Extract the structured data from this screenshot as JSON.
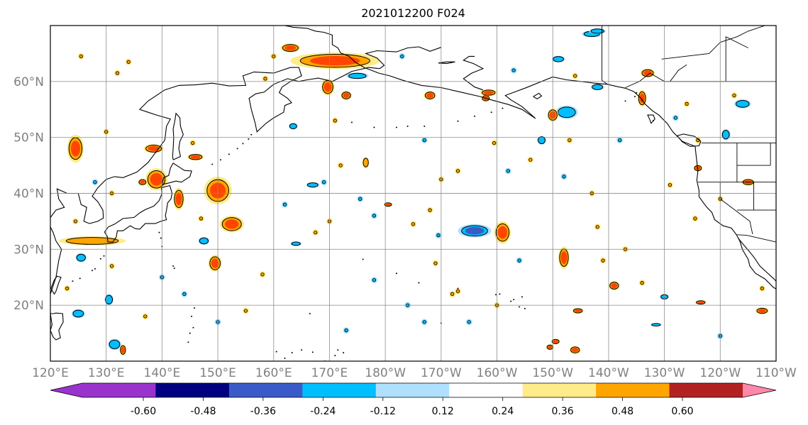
{
  "title": "2021012200 F024",
  "lon_ticks": [
    {
      "lon": 120,
      "label": "120°E"
    },
    {
      "lon": 130,
      "label": "130°E"
    },
    {
      "lon": 140,
      "label": "140°E"
    },
    {
      "lon": 150,
      "label": "150°E"
    },
    {
      "lon": 160,
      "label": "160°E"
    },
    {
      "lon": 170,
      "label": "170°E"
    },
    {
      "lon": 180,
      "label": "180°W"
    },
    {
      "lon": 190,
      "label": "170°W"
    },
    {
      "lon": 200,
      "label": "160°W"
    },
    {
      "lon": 210,
      "label": "150°W"
    },
    {
      "lon": 220,
      "label": "140°W"
    },
    {
      "lon": 230,
      "label": "130°W"
    },
    {
      "lon": 240,
      "label": "120°W"
    },
    {
      "lon": 250,
      "label": "110°W"
    }
  ],
  "lat_ticks": [
    {
      "lat": 20,
      "label": "20°N"
    },
    {
      "lat": 30,
      "label": "30°N"
    },
    {
      "lat": 40,
      "label": "40°N"
    },
    {
      "lat": 50,
      "label": "50°N"
    },
    {
      "lat": 60,
      "label": "60°N"
    }
  ],
  "extent": {
    "lon_min": 120,
    "lon_max": 250,
    "lat_min": 10,
    "lat_max": 70
  },
  "colorbar": {
    "colors": [
      "#9933cc",
      "#000080",
      "#3a5bc7",
      "#00bfff",
      "#b0e0ff",
      "#ffffff",
      "#ffeb8a",
      "#ffa500",
      "#ff4500",
      "#b22222",
      "#ff88aa"
    ],
    "ticks": [
      "-0.60",
      "-0.48",
      "-0.36",
      "-0.24",
      "-0.12",
      "0.12",
      "0.24",
      "0.36",
      "0.48",
      "0.60"
    ]
  },
  "anomalies": [
    {
      "lon": 171,
      "lat": 63.7,
      "rx": 8,
      "ry": 1.5,
      "level": 3
    },
    {
      "lon": 150,
      "lat": 40.5,
      "rx": 2.5,
      "ry": 2.5,
      "level": 3
    },
    {
      "lon": 152.5,
      "lat": 34.5,
      "rx": 2.2,
      "ry": 1.5,
      "level": 3
    },
    {
      "lon": 139,
      "lat": 42.5,
      "rx": 2,
      "ry": 2,
      "level": 3
    },
    {
      "lon": 124.5,
      "lat": 48,
      "rx": 1.5,
      "ry": 2.5,
      "level": 3
    },
    {
      "lon": 127.5,
      "lat": 31.5,
      "rx": 6,
      "ry": 0.8,
      "level": 2
    },
    {
      "lon": 196,
      "lat": 33.3,
      "rx": 3,
      "ry": 1.2,
      "level": -3
    },
    {
      "lon": 201,
      "lat": 33,
      "rx": 1.5,
      "ry": 2,
      "level": 3
    },
    {
      "lon": 212,
      "lat": 28.5,
      "rx": 1,
      "ry": 2,
      "level": 3
    },
    {
      "lon": 169.7,
      "lat": 59,
      "rx": 1.2,
      "ry": 1.5,
      "level": 3
    },
    {
      "lon": 149.5,
      "lat": 27.5,
      "rx": 1.2,
      "ry": 1.5,
      "level": 3
    },
    {
      "lon": 212.5,
      "lat": 54.5,
      "rx": 2,
      "ry": 1.2,
      "level": -2
    },
    {
      "lon": 244,
      "lat": 56,
      "rx": 1.5,
      "ry": 0.8,
      "level": -2
    },
    {
      "lon": 163,
      "lat": 66,
      "rx": 1.8,
      "ry": 0.8,
      "level": 3
    },
    {
      "lon": 173,
      "lat": 57.5,
      "rx": 1,
      "ry": 0.8,
      "level": 3
    },
    {
      "lon": 198.5,
      "lat": 58,
      "rx": 1.5,
      "ry": 0.6,
      "level": 3
    },
    {
      "lon": 188,
      "lat": 57.5,
      "rx": 1.1,
      "ry": 0.8,
      "level": 3
    },
    {
      "lon": 210,
      "lat": 54,
      "rx": 1,
      "ry": 1.2,
      "level": 3
    },
    {
      "lon": 227,
      "lat": 61.5,
      "rx": 1.3,
      "ry": 0.8,
      "level": 3
    },
    {
      "lon": 226,
      "lat": 57,
      "rx": 0.8,
      "ry": 1.5,
      "level": 3
    },
    {
      "lon": 217,
      "lat": 68.5,
      "rx": 1.8,
      "ry": 0.6,
      "level": -2
    },
    {
      "lon": 175,
      "lat": 61,
      "rx": 2,
      "ry": 0.6,
      "level": -2
    },
    {
      "lon": 146,
      "lat": 46.5,
      "rx": 1.5,
      "ry": 0.6,
      "level": 3
    },
    {
      "lon": 143,
      "lat": 39,
      "rx": 1,
      "ry": 2,
      "level": 3
    },
    {
      "lon": 138.5,
      "lat": 48,
      "rx": 1.8,
      "ry": 0.8,
      "level": 3
    },
    {
      "lon": 131.5,
      "lat": 13,
      "rx": 1.2,
      "ry": 1,
      "level": -2
    },
    {
      "lon": 130.5,
      "lat": 21,
      "rx": 0.8,
      "ry": 1,
      "level": -2
    },
    {
      "lon": 125,
      "lat": 18.5,
      "rx": 1.2,
      "ry": 0.8,
      "level": -2
    },
    {
      "lon": 125.5,
      "lat": 28.5,
      "rx": 1,
      "ry": 0.8,
      "level": -2
    },
    {
      "lon": 211,
      "lat": 64,
      "rx": 1.2,
      "ry": 0.6,
      "level": -2
    },
    {
      "lon": 218,
      "lat": 69,
      "rx": 1.5,
      "ry": 0.5,
      "level": -2
    },
    {
      "lon": 241,
      "lat": 50.5,
      "rx": 0.8,
      "ry": 1,
      "level": -2
    },
    {
      "lon": 218,
      "lat": 59,
      "rx": 1.2,
      "ry": 0.6,
      "level": -2
    },
    {
      "lon": 208,
      "lat": 49.5,
      "rx": 0.8,
      "ry": 0.8,
      "level": -2
    },
    {
      "lon": 164,
      "lat": 31,
      "rx": 1,
      "ry": 0.4,
      "level": -2
    },
    {
      "lon": 147.5,
      "lat": 31.5,
      "rx": 1,
      "ry": 0.7,
      "level": -2
    },
    {
      "lon": 163.5,
      "lat": 52,
      "rx": 0.8,
      "ry": 0.6,
      "level": -2
    },
    {
      "lon": 176.5,
      "lat": 45.5,
      "rx": 0.6,
      "ry": 1,
      "level": 2
    },
    {
      "lon": 167,
      "lat": 41.5,
      "rx": 1.2,
      "ry": 0.5,
      "level": -2
    },
    {
      "lon": 214.5,
      "lat": 19,
      "rx": 1,
      "ry": 0.5,
      "level": 3
    },
    {
      "lon": 221,
      "lat": 23.5,
      "rx": 1,
      "ry": 0.8,
      "level": 3
    },
    {
      "lon": 236.5,
      "lat": 20.5,
      "rx": 1,
      "ry": 0.4,
      "level": 3
    },
    {
      "lon": 247.5,
      "lat": 19,
      "rx": 1.2,
      "ry": 0.6,
      "level": 3
    },
    {
      "lon": 230,
      "lat": 21.5,
      "rx": 0.8,
      "ry": 0.5,
      "level": -2
    },
    {
      "lon": 236,
      "lat": 44.5,
      "rx": 0.8,
      "ry": 0.6,
      "level": 3
    },
    {
      "lon": 245,
      "lat": 42,
      "rx": 1.2,
      "ry": 0.6,
      "level": 3
    },
    {
      "lon": 198,
      "lat": 57,
      "rx": 0.8,
      "ry": 0.6,
      "level": 3
    },
    {
      "lon": 210.5,
      "lat": 13.5,
      "rx": 0.8,
      "ry": 0.5,
      "level": 3
    },
    {
      "lon": 214,
      "lat": 12,
      "rx": 1,
      "ry": 0.7,
      "level": 3
    },
    {
      "lon": 209.5,
      "lat": 12.5,
      "rx": 0.7,
      "ry": 0.5,
      "level": 3
    },
    {
      "lon": 180.5,
      "lat": 38,
      "rx": 0.8,
      "ry": 0.4,
      "level": 3
    },
    {
      "lon": 136.5,
      "lat": 42,
      "rx": 0.8,
      "ry": 0.6,
      "level": 3
    },
    {
      "lon": 133,
      "lat": 12,
      "rx": 0.6,
      "ry": 1,
      "level": 3
    },
    {
      "lon": 228.5,
      "lat": 16.5,
      "rx": 1,
      "ry": 0.3,
      "level": -2
    }
  ],
  "dots": [
    {
      "lon": 125.5,
      "lat": 64.5,
      "level": 3
    },
    {
      "lon": 134,
      "lat": 63.5,
      "level": 3
    },
    {
      "lon": 132,
      "lat": 61.5,
      "level": 3
    },
    {
      "lon": 158.5,
      "lat": 60.5,
      "level": 2
    },
    {
      "lon": 160,
      "lat": 64.5,
      "level": 2
    },
    {
      "lon": 183,
      "lat": 64.5,
      "level": -2
    },
    {
      "lon": 203,
      "lat": 62,
      "level": -2
    },
    {
      "lon": 214,
      "lat": 61,
      "level": 2
    },
    {
      "lon": 242.5,
      "lat": 57.5,
      "level": 2
    },
    {
      "lon": 234,
      "lat": 56,
      "level": 3
    },
    {
      "lon": 232,
      "lat": 53.5,
      "level": -2
    },
    {
      "lon": 236,
      "lat": 49.5,
      "level": 2
    },
    {
      "lon": 240,
      "lat": 39,
      "level": 2
    },
    {
      "lon": 231,
      "lat": 41.5,
      "level": 2
    },
    {
      "lon": 202,
      "lat": 44,
      "level": -2
    },
    {
      "lon": 199.5,
      "lat": 49,
      "level": 3
    },
    {
      "lon": 190,
      "lat": 42.5,
      "level": 2
    },
    {
      "lon": 188,
      "lat": 37,
      "level": 3
    },
    {
      "lon": 193,
      "lat": 44,
      "level": 3
    },
    {
      "lon": 187,
      "lat": 49.5,
      "level": -2
    },
    {
      "lon": 175.5,
      "lat": 39,
      "level": -2
    },
    {
      "lon": 185,
      "lat": 34.5,
      "level": 3
    },
    {
      "lon": 189,
      "lat": 27.5,
      "level": 3
    },
    {
      "lon": 192,
      "lat": 22,
      "level": 3
    },
    {
      "lon": 200,
      "lat": 20,
      "level": 2
    },
    {
      "lon": 204,
      "lat": 28,
      "level": -2
    },
    {
      "lon": 187,
      "lat": 17,
      "level": -2
    },
    {
      "lon": 184,
      "lat": 20,
      "level": -2
    },
    {
      "lon": 178,
      "lat": 24.5,
      "level": -2
    },
    {
      "lon": 173,
      "lat": 15.5,
      "level": -2
    },
    {
      "lon": 170,
      "lat": 35,
      "level": 3
    },
    {
      "lon": 162,
      "lat": 38,
      "level": -2
    },
    {
      "lon": 155,
      "lat": 19,
      "level": 2
    },
    {
      "lon": 158,
      "lat": 25.5,
      "level": 3
    },
    {
      "lon": 144,
      "lat": 22,
      "level": -2
    },
    {
      "lon": 150,
      "lat": 17,
      "level": -2
    },
    {
      "lon": 169,
      "lat": 42,
      "level": -2
    },
    {
      "lon": 178,
      "lat": 36,
      "level": -2
    },
    {
      "lon": 171,
      "lat": 53,
      "level": 2
    },
    {
      "lon": 172,
      "lat": 45,
      "level": 3
    },
    {
      "lon": 206,
      "lat": 46,
      "level": 3
    },
    {
      "lon": 218,
      "lat": 34,
      "level": 2
    },
    {
      "lon": 223,
      "lat": 30,
      "level": 3
    },
    {
      "lon": 226,
      "lat": 24,
      "level": 2
    },
    {
      "lon": 219,
      "lat": 28,
      "level": 2
    },
    {
      "lon": 222,
      "lat": 49.5,
      "level": -2
    },
    {
      "lon": 217,
      "lat": 40,
      "level": 3
    },
    {
      "lon": 212,
      "lat": 43,
      "level": -2
    },
    {
      "lon": 213,
      "lat": 49.5,
      "level": 2
    },
    {
      "lon": 147,
      "lat": 35.5,
      "level": 2
    },
    {
      "lon": 131,
      "lat": 40,
      "level": 2
    },
    {
      "lon": 123,
      "lat": 23,
      "level": 3
    },
    {
      "lon": 140,
      "lat": 25,
      "level": -2
    },
    {
      "lon": 137,
      "lat": 18,
      "level": 3
    },
    {
      "lon": 128,
      "lat": 42,
      "level": -2
    },
    {
      "lon": 145.5,
      "lat": 49,
      "level": 2
    },
    {
      "lon": 131,
      "lat": 27,
      "level": 3
    },
    {
      "lon": 195,
      "lat": 17,
      "level": -2
    },
    {
      "lon": 189.5,
      "lat": 32.5,
      "level": -2
    },
    {
      "lon": 240,
      "lat": 14.5,
      "level": -2
    },
    {
      "lon": 247.5,
      "lat": 23,
      "level": 3
    },
    {
      "lon": 235.5,
      "lat": 35.5,
      "level": 3
    },
    {
      "lon": 193,
      "lat": 22.5,
      "level": 3
    },
    {
      "lon": 167.5,
      "lat": 33,
      "level": 3
    },
    {
      "lon": 130,
      "lat": 51,
      "level": 3
    },
    {
      "lon": 124.5,
      "lat": 35,
      "level": 3
    }
  ]
}
